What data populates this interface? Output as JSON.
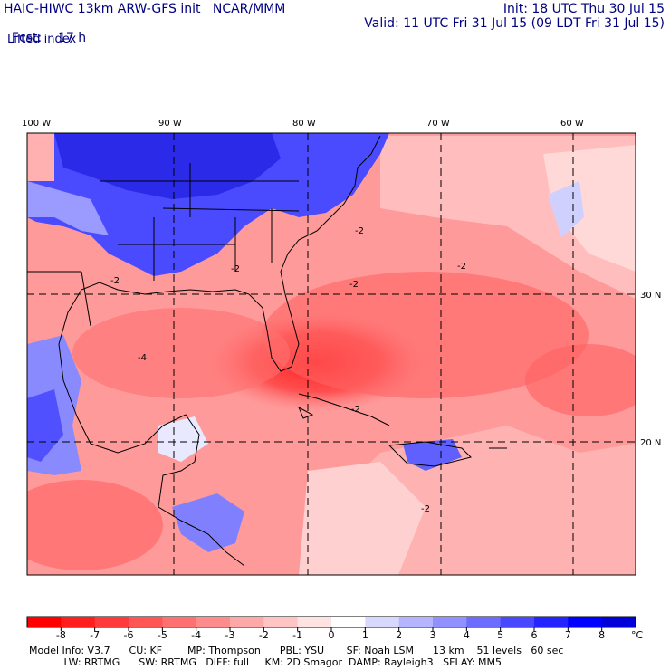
{
  "header": {
    "model_line": "HAIC-HIWC 13km ARW-GFS init   NCAR/MMM",
    "fcst_label": "Fcst:",
    "fcst_value": "17 h",
    "init": "Init: 18 UTC Thu 30 Jul 15",
    "valid": "Valid: 11 UTC Fri 31 Jul 15 (09 LDT Fri 31 Jul 15)",
    "field": "Lifted index"
  },
  "map": {
    "lon_labels": [
      "100 W",
      "90 W",
      "80 W",
      "70 W",
      "60 W"
    ],
    "lat_labels": [
      "30 N",
      "20 N"
    ],
    "contour_labels": [
      "-2",
      "-2",
      "-2",
      "-2",
      "-2",
      "-4",
      "-2",
      "-2"
    ]
  },
  "colorbar": {
    "ticks": [
      "-8",
      "-7",
      "-6",
      "-5",
      "-4",
      "-3",
      "-2",
      "-1",
      "0",
      "1",
      "2",
      "3",
      "4",
      "5",
      "6",
      "7",
      "8"
    ],
    "unit": "°C",
    "colors": [
      "#ff0000",
      "#ff1e1e",
      "#ff3a3a",
      "#ff5555",
      "#ff7070",
      "#ff8c8c",
      "#ffa8a8",
      "#ffc4c4",
      "#ffe2e2",
      "#ffffff",
      "#d8d8ff",
      "#b4b4ff",
      "#9090ff",
      "#6c6cff",
      "#4848ff",
      "#2424ff",
      "#0000ff",
      "#0000d8"
    ]
  },
  "footer": {
    "line1": "Model Info: V3.7      CU: KF        MP: Thompson      PBL: YSU       SF: Noah LSM      13 km    51 levels   60 sec",
    "line2": "           LW: RRTMG      SW: RRTMG   DIFF: full     KM: 2D Smagor  DAMP: Rayleigh3   SFLAY: MM5"
  }
}
